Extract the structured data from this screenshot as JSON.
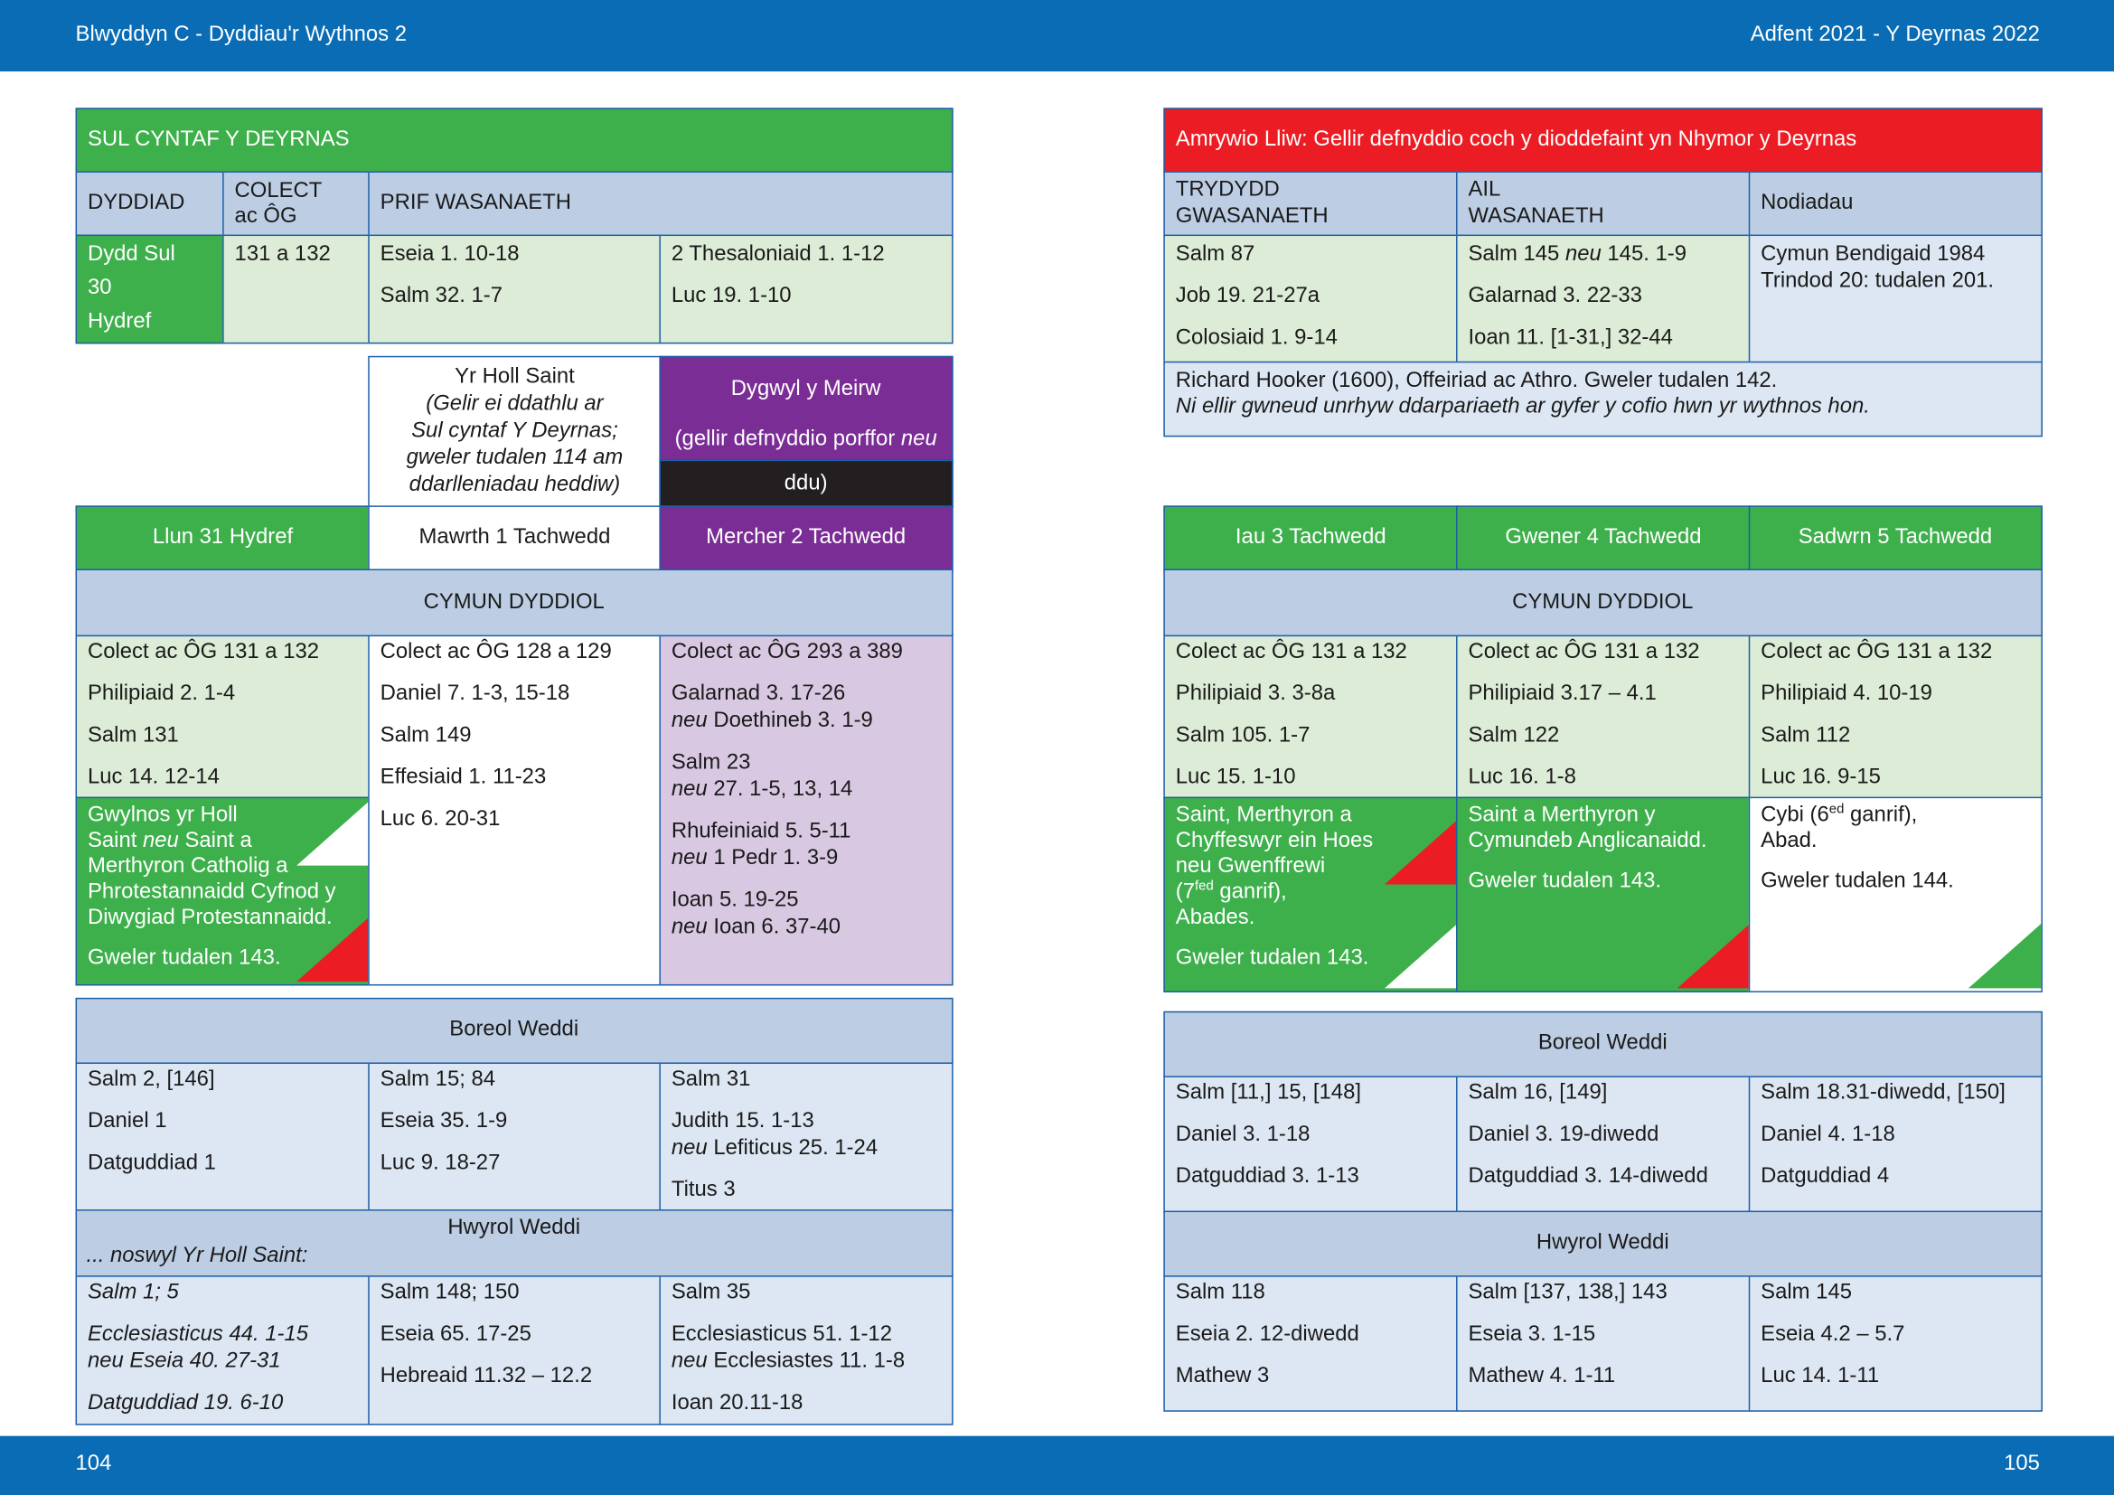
{
  "header": {
    "left": "Blwyddyn  C - Dyddiau'r Wythnos 2",
    "right": "Adfent 2021 - Y Deyrnas 2022"
  },
  "footer": {
    "left_page": "104",
    "right_page": "105"
  },
  "sunday": {
    "title": "SUL CYNTAF Y DEYRNAS",
    "headers": [
      "DYDDIAD",
      [
        [
          "COLECT",
          "ac ÔG"
        ]
      ],
      "PRIF WASANAETH"
    ],
    "date": [
      "Dydd Sul",
      "30",
      "Hydref"
    ],
    "collect": [
      "131 a 132"
    ],
    "main": [
      [
        "Eseia 1. 10-18",
        "Salm 32. 1-7"
      ],
      [
        "2 Thesaloniaid 1. 1-12",
        "Luc 19. 1-10"
      ]
    ]
  },
  "sunday_alt": {
    "title": "Amrywio Lliw: Gellir defnyddio coch y dioddefaint yn Nhymor y Deyrnas",
    "headers": [
      [
        [
          "TRYDYDD",
          "GWASANAETH"
        ]
      ],
      [
        [
          "AIL",
          "WASANAETH"
        ]
      ],
      "Nodiadau"
    ],
    "third": [
      "Salm 87",
      "Job 19. 21-27a",
      "Colosiaid 1. 9-14"
    ],
    "second": [
      [
        [
          "Salm 145 ",
          {
            "i": "neu"
          },
          " 145. 1-9"
        ]
      ],
      "Galarnad 3. 22-33",
      "Ioan 11. [1-31,] 32-44"
    ],
    "notes": [
      [
        "Cymun Bendigaid 1984",
        "Trindod 20: tudalen 201."
      ]
    ],
    "commemoration": [
      [
        "Richard Hooker (1600), Offeiriad ac Athro. Gweler tudalen 142.",
        [
          {
            "i": "Ni ellir gwneud unrhyw ddarpariaeth ar gyfer y cofio hwn yr wythnos hon."
          }
        ]
      ]
    ]
  },
  "all_saints": [
    [
      "Yr Holl Saint",
      [
        {
          "i": "(Gelir ei ddathlu ar"
        }
      ],
      [
        {
          "i": "Sul cyntaf Y Deyrnas;"
        }
      ],
      [
        {
          "i": "gweler tudalen 114 am"
        }
      ],
      [
        {
          "i": "ddarlleniadau heddiw)"
        }
      ]
    ]
  ],
  "all_souls": {
    "title": "Dygwyl y Meirw",
    "note": [
      [
        [
          "(gellir defnyddio porffor ",
          {
            "i": "neu"
          }
        ]
      ]
    ],
    "note_end": "ddu)"
  },
  "sections": [
    {
      "eucharist": "CYMUN DYDDIOL",
      "morning": "Boreol Weddi",
      "evening": "Hwyrol Weddi",
      "eve_note": "... noswyl Yr Holl Saint:"
    },
    {
      "eucharist": "CYMUN DYDDIOL",
      "morning": "Boreol Weddi",
      "evening": "Hwyrol Weddi"
    }
  ],
  "weekdays": [
    {
      "day": "Llun 31 Hydref",
      "eucharist": [
        "Colect ac ÔG 131 a 132",
        "Philipiaid 2. 1-4",
        "Salm 131",
        "Luc 14. 12-14"
      ],
      "commemoration": [
        [
          "Gwylnos yr Holl",
          [
            "Saint ",
            {
              "i": "neu"
            },
            " Saint a"
          ],
          "Merthyron Catholig a",
          "Phrotestannaidd Cyfnod y",
          "Diwygiad Protestannaidd."
        ],
        "Gweler tudalen 143."
      ],
      "morning": [
        "Salm 2, [146]",
        "Daniel 1",
        "Datguddiad 1"
      ],
      "evening": [
        [
          [
            {
              "i": "Salm 1; 5"
            }
          ]
        ],
        [
          [
            {
              "i": "Ecclesiasticus 44. 1-15"
            }
          ],
          [
            {
              "i": "neu Eseia 40. 27-31"
            }
          ]
        ],
        [
          [
            {
              "i": "Datguddiad 19. 6-10"
            }
          ]
        ]
      ]
    },
    {
      "day": "Mawrth 1 Tachwedd",
      "eucharist": [
        "Colect ac ÔG 128 a 129",
        "Daniel 7. 1-3, 15-18",
        "Salm 149",
        "Effesiaid 1. 11-23",
        "Luc 6. 20-31"
      ],
      "morning": [
        "Salm 15; 84",
        "Eseia 35. 1-9",
        "Luc 9. 18-27"
      ],
      "evening": [
        "Salm 148; 150",
        "Eseia 65. 17-25",
        "Hebreaid 11.32 – 12.2"
      ]
    },
    {
      "day": "Mercher 2 Tachwedd",
      "eucharist": [
        "Colect ac ÔG 293 a 389",
        [
          "Galarnad 3. 17-26",
          [
            {
              "i": "neu"
            },
            " Doethineb 3. 1-9"
          ]
        ],
        [
          "Salm 23",
          [
            {
              "i": "neu"
            },
            " 27. 1-5, 13, 14"
          ]
        ],
        [
          "Rhufeiniaid 5. 5-11",
          [
            {
              "i": "neu"
            },
            " 1 Pedr 1. 3-9"
          ]
        ],
        [
          "Ioan 5. 19-25",
          [
            {
              "i": "neu"
            },
            " Ioan 6. 37-40"
          ]
        ]
      ],
      "morning": [
        "Salm 31",
        [
          "Judith 15. 1-13",
          [
            {
              "i": "neu"
            },
            " Lefiticus 25. 1-24"
          ]
        ],
        "Titus 3"
      ],
      "evening": [
        "Salm 35",
        [
          "Ecclesiasticus 51. 1-12",
          [
            {
              "i": "neu"
            },
            " Ecclesiastes 11. 1-8"
          ]
        ],
        "Ioan 20.11-18"
      ]
    },
    {
      "day": "Iau 3 Tachwedd",
      "eucharist": [
        "Colect ac ÔG 131 a 132",
        "Philipiaid 3. 3-8a",
        "Salm 105. 1-7",
        "Luc 15. 1-10"
      ],
      "commemoration": [
        [
          "Saint, Merthyron a",
          "Chyffeswyr ein Hoes",
          "neu Gwenffrewi",
          [
            "(7",
            {
              "sup": "fed"
            },
            " ganrif),"
          ],
          "Abades."
        ],
        "Gweler tudalen 143."
      ],
      "morning": [
        "Salm [11,] 15, [148]",
        "Daniel 3. 1-18",
        "Datguddiad 3. 1-13"
      ],
      "evening": [
        "Salm 118",
        "Eseia 2. 12-diwedd",
        "Mathew 3"
      ]
    },
    {
      "day": "Gwener 4 Tachwedd",
      "eucharist": [
        "Colect ac ÔG 131 a 132",
        "Philipiaid 3.17 – 4.1",
        "Salm 122",
        "Luc 16. 1-8"
      ],
      "commemoration": [
        [
          "Saint a Merthyron y",
          "Cymundeb Anglicanaidd."
        ],
        "Gweler tudalen 143."
      ],
      "morning": [
        "Salm 16, [149]",
        "Daniel 3. 19-diwedd",
        "Datguddiad 3. 14-diwedd"
      ],
      "evening": [
        "Salm [137, 138,] 143",
        "Eseia 3. 1-15",
        "Mathew 4. 1-11"
      ]
    },
    {
      "day": "Sadwrn 5 Tachwedd",
      "eucharist": [
        "Colect ac ÔG 131 a 132",
        "Philipiaid 4. 10-19",
        "Salm 112",
        "Luc 16. 9-15"
      ],
      "commemoration": [
        [
          [
            "Cybi (6",
            {
              "sup": "ed"
            },
            " ganrif),"
          ],
          "Abad."
        ],
        "Gweler tudalen 144."
      ],
      "morning": [
        "Salm 18.31-diwedd, [150]",
        "Daniel 4. 1-18",
        "Datguddiad 4"
      ],
      "evening": [
        "Salm 145",
        "Eseia 4.2 – 5.7",
        "Luc 14. 1-11"
      ]
    }
  ]
}
